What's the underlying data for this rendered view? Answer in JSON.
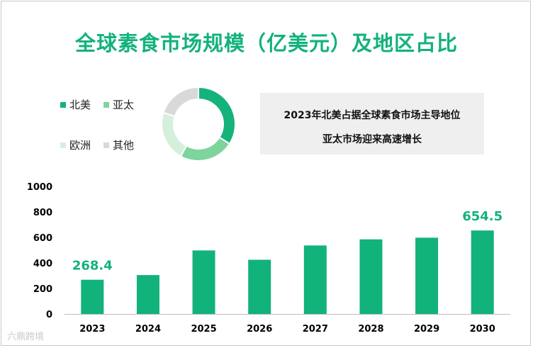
{
  "title": "全球素食市场规模（亿美元）及地区占比",
  "callout": {
    "line1": "2023年北美占据全球素食市场主导地位",
    "line2": "亚太市场迎来高速增长"
  },
  "watermark": "六鼎跨境",
  "colors": {
    "accent": "#12b27b",
    "north_america": "#16b27b",
    "asia_pacific": "#7dd49d",
    "europe": "#d4f0dc",
    "other": "#d9d9d9"
  },
  "chart_data": [
    {
      "type": "pie",
      "variant": "donut",
      "categories": [
        "北美",
        "亚太",
        "欧洲",
        "其他"
      ],
      "values": [
        34,
        24,
        22,
        20
      ],
      "legend": "left"
    },
    {
      "type": "bar",
      "categories": [
        "2023",
        "2024",
        "2025",
        "2026",
        "2027",
        "2028",
        "2029",
        "2030"
      ],
      "values": [
        268.4,
        305,
        498,
        425,
        537,
        585,
        598,
        654.5
      ],
      "data_labels": [
        "268.4",
        "",
        "",
        "",
        "",
        "",
        "",
        "654.5"
      ],
      "yticks": [
        "0",
        "200",
        "400",
        "600",
        "800",
        "1000"
      ],
      "ylim": [
        0,
        1000
      ],
      "xlabel": "",
      "ylabel": "",
      "grid": false
    }
  ]
}
